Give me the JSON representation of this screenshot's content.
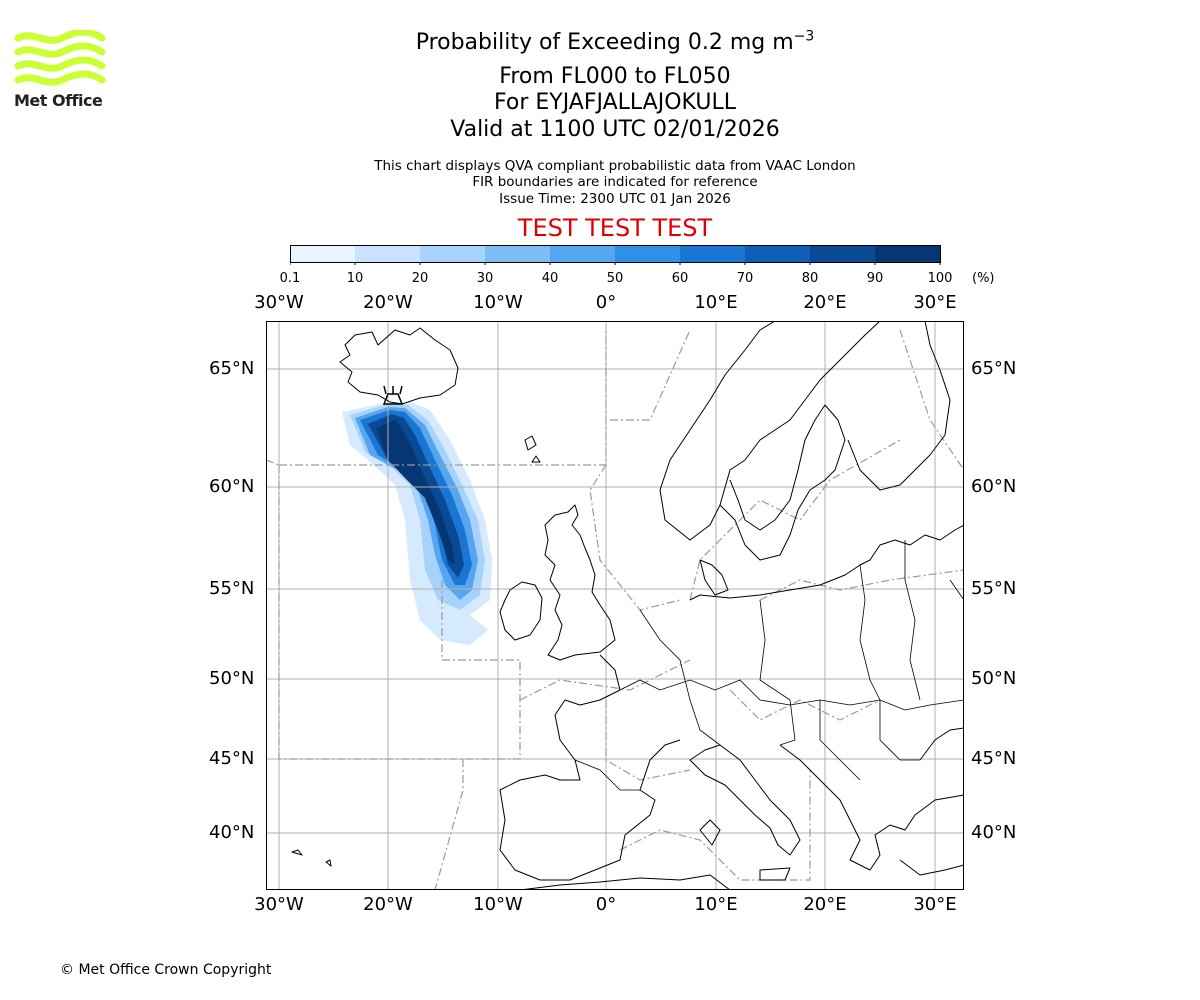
{
  "header": {
    "title_prefix": "Probability of Exceeding 0.2 mg m",
    "title_exponent": "−3",
    "levels": "From FL000 to FL050",
    "volcano": "For EYJAFJALLAJOKULL",
    "valid": "Valid at 1100 UTC 02/01/2026",
    "info1": "This chart displays QVA compliant probabilistic data from VAAC London",
    "info2": "FIR boundaries are indicated for reference",
    "issue": "Issue Time: 2300 UTC 01 Jan 2026",
    "banner": "TEST TEST TEST"
  },
  "logo": {
    "text": "Met Office",
    "color": "#ccff33"
  },
  "colorbar": {
    "ticks": [
      "0.1",
      "10",
      "20",
      "30",
      "40",
      "50",
      "60",
      "70",
      "80",
      "90",
      "100"
    ],
    "unit": "(%)",
    "colors": [
      "#eaf4ff",
      "#c9e3ff",
      "#a6d2fb",
      "#7dbcf5",
      "#55a6ef",
      "#2f90e8",
      "#1a76d2",
      "#0f5eb6",
      "#0a4a94",
      "#063673",
      "#022352"
    ]
  },
  "map": {
    "lon_labels": [
      "30°W",
      "20°W",
      "10°W",
      "0°",
      "10°E",
      "20°E",
      "30°E"
    ],
    "lat_labels": [
      "65°N",
      "60°N",
      "55°N",
      "50°N",
      "45°N",
      "40°N"
    ]
  },
  "footer": {
    "copyright": "© Met Office Crown Copyright"
  }
}
